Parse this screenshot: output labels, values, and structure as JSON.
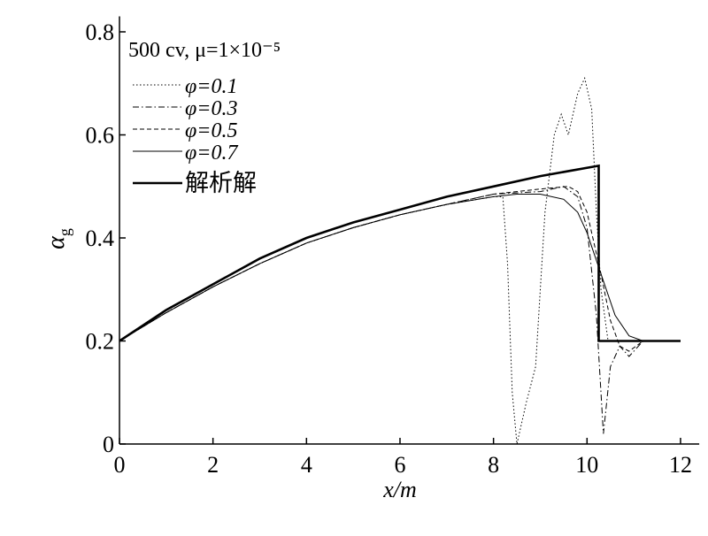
{
  "chart_data": {
    "type": "line",
    "xlabel": "x/m",
    "ylabel": {
      "symbol": "α",
      "subscript": "g"
    },
    "legend_title": "500 cv, μ=1×10⁻⁵",
    "legend": "upper-left",
    "xlim": [
      0,
      12.4
    ],
    "xticks": [
      0,
      2,
      4,
      6,
      8,
      10,
      12
    ],
    "ylim": [
      0,
      0.83
    ],
    "yticks": [
      0,
      0.2,
      0.4,
      0.6,
      0.8
    ],
    "series": [
      {
        "name": "φ=0.1",
        "color": "#000000",
        "style": "dotted",
        "width": 1,
        "x": [
          0,
          1,
          2,
          3,
          4,
          5,
          6,
          7,
          8,
          8.2,
          8.3,
          8.4,
          8.5,
          8.7,
          8.9,
          9.0,
          9.1,
          9.3,
          9.45,
          9.6,
          9.8,
          9.95,
          10.1,
          10.2,
          10.3,
          10.45,
          10.7,
          12
        ],
        "values": [
          0.2,
          0.255,
          0.305,
          0.35,
          0.39,
          0.42,
          0.445,
          0.465,
          0.48,
          0.48,
          0.35,
          0.1,
          0.0,
          0.08,
          0.15,
          0.3,
          0.45,
          0.6,
          0.64,
          0.6,
          0.68,
          0.71,
          0.65,
          0.45,
          0.3,
          0.2,
          0.2,
          0.2
        ]
      },
      {
        "name": "φ=0.3",
        "color": "#000000",
        "style": "dashdot",
        "width": 1,
        "x": [
          0,
          1,
          2,
          3,
          4,
          5,
          6,
          7,
          8,
          9,
          9.5,
          9.8,
          10,
          10.2,
          10.35,
          10.5,
          10.7,
          10.9,
          11.2,
          12
        ],
        "values": [
          0.2,
          0.255,
          0.305,
          0.35,
          0.39,
          0.42,
          0.445,
          0.465,
          0.485,
          0.49,
          0.5,
          0.48,
          0.42,
          0.25,
          0.02,
          0.15,
          0.19,
          0.17,
          0.2,
          0.2
        ]
      },
      {
        "name": "φ=0.5",
        "color": "#000000",
        "style": "dashed",
        "width": 1,
        "x": [
          0,
          1,
          2,
          3,
          4,
          5,
          6,
          7,
          8,
          9,
          9.6,
          9.8,
          10,
          10.3,
          10.5,
          10.7,
          10.9,
          11.2,
          12
        ],
        "values": [
          0.2,
          0.255,
          0.305,
          0.35,
          0.39,
          0.42,
          0.445,
          0.465,
          0.485,
          0.495,
          0.5,
          0.49,
          0.45,
          0.33,
          0.24,
          0.19,
          0.18,
          0.2,
          0.2
        ]
      },
      {
        "name": "φ=0.7",
        "color": "#000000",
        "style": "solid",
        "width": 1,
        "x": [
          0,
          1,
          2,
          3,
          4,
          5,
          6,
          7,
          8,
          8.5,
          9,
          9.5,
          9.8,
          10,
          10.3,
          10.6,
          10.9,
          11.2,
          12
        ],
        "values": [
          0.2,
          0.255,
          0.305,
          0.35,
          0.39,
          0.42,
          0.445,
          0.465,
          0.48,
          0.485,
          0.485,
          0.475,
          0.45,
          0.41,
          0.33,
          0.25,
          0.21,
          0.2,
          0.2
        ]
      },
      {
        "name": "解析解",
        "color": "#000000",
        "style": "solid",
        "width": 2.6,
        "x": [
          0,
          1,
          2,
          3,
          4,
          5,
          6,
          7,
          8,
          9,
          10.25,
          10.25,
          12
        ],
        "values": [
          0.2,
          0.26,
          0.31,
          0.36,
          0.4,
          0.43,
          0.455,
          0.48,
          0.5,
          0.52,
          0.54,
          0.2,
          0.2
        ]
      }
    ]
  }
}
